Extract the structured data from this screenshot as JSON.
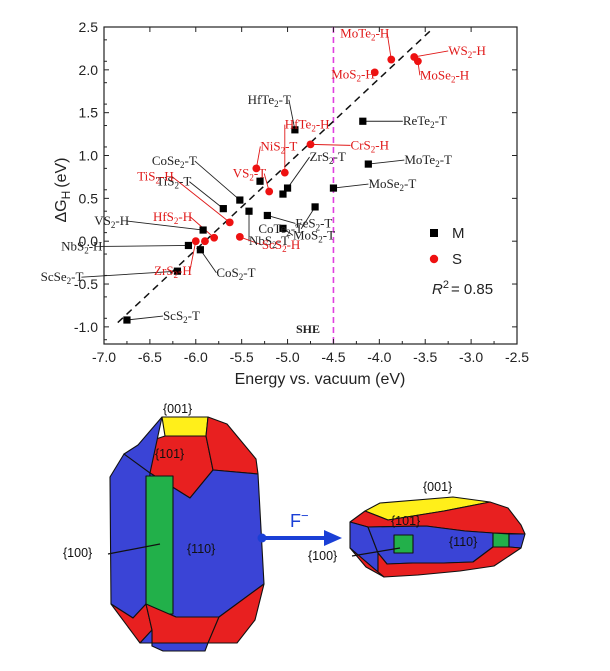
{
  "chart_data": {
    "type": "scatter",
    "xlabel": "Energy vs. vacuum (eV)",
    "ylabel": "ΔG",
    "ylabel_sub": "H",
    "ylabel_unit": "(eV)",
    "xlim": [
      -7.0,
      -2.5
    ],
    "ylim": [
      -1.2,
      2.5
    ],
    "xticks": [
      -7.0,
      -6.5,
      -6.0,
      -5.5,
      -5.0,
      -4.5,
      -4.0,
      -3.5,
      -3.0,
      -2.5
    ],
    "xtick_labels": [
      "-7.0",
      "-6.5",
      "-6.0",
      "-5.5",
      "-5.0",
      "-4.5",
      "-4.0",
      "-3.5",
      "-3.0",
      "-2.5"
    ],
    "yticks": [
      -1.0,
      -0.5,
      0.0,
      0.5,
      1.0,
      1.5,
      2.0,
      2.5
    ],
    "ytick_labels": [
      "-1.0",
      "-0.5",
      "0.0",
      "0.5",
      "1.0",
      "1.5",
      "2.0",
      "2.5"
    ],
    "she": {
      "x": -4.5,
      "label": "SHE",
      "color": "#e040e0"
    },
    "fit_line": {
      "x": [
        -6.85,
        -3.45
      ],
      "y": [
        -0.95,
        2.45
      ]
    },
    "r2_label": "R",
    "r2_sup": "2",
    "r2_value": "= 0.85",
    "legend": [
      {
        "name": "M",
        "marker": "square",
        "color": "#000000"
      },
      {
        "name": "S",
        "marker": "circle",
        "color": "#ee1111"
      }
    ],
    "series": [
      {
        "name": "M",
        "marker": "square",
        "color": "#000000",
        "points": [
          {
            "x": -6.75,
            "y": -0.92,
            "label": "ScS",
            "sub": "2",
            "suf": "-T",
            "lc": "#222",
            "dx": 36,
            "dy": 0,
            "ldx": 2,
            "ldy": 1
          },
          {
            "x": -6.2,
            "y": -0.35,
            "label": "ScSe",
            "sub": "2",
            "suf": "-T",
            "lc": "#222",
            "dx": -96,
            "dy": 10,
            "ldx": 0,
            "ldy": 1
          },
          {
            "x": -6.08,
            "y": -0.05,
            "label": "NbS",
            "sub": "2",
            "suf": "-H",
            "lc": "#222",
            "dx": -88,
            "dy": 5,
            "ldx": 0,
            "ldy": 1
          },
          {
            "x": -5.92,
            "y": 0.13,
            "label": "VS",
            "sub": "2",
            "suf": "-H",
            "lc": "#222",
            "dx": -76,
            "dy": -5,
            "ldx": 0,
            "ldy": 1
          },
          {
            "x": -5.95,
            "y": -0.1,
            "label": "CoS",
            "sub": "2",
            "suf": "-T",
            "lc": "#222",
            "dx": 16,
            "dy": 27,
            "ldx": 2,
            "ldy": 1
          },
          {
            "x": -5.7,
            "y": 0.38,
            "label": "TiS",
            "sub": "2",
            "suf": "-T",
            "lc": "#222",
            "dx": -34,
            "dy": -23,
            "ldx": 0,
            "ldy": 1
          },
          {
            "x": -5.52,
            "y": 0.48,
            "label": "CoSe",
            "sub": "2",
            "suf": "-T",
            "lc": "#222",
            "dx": -45,
            "dy": -35,
            "ldx": 0,
            "ldy": 1
          },
          {
            "x": -5.42,
            "y": 0.35,
            "label": "NbS",
            "sub": "2",
            "suf": "-T",
            "lc": "#222",
            "dx": 0,
            "dy": 34,
            "ldx": 2,
            "ldy": 1
          },
          {
            "x": -5.3,
            "y": 0.7,
            "label": "",
            "sub": "",
            "suf": "",
            "lc": "#222",
            "dx": 0,
            "dy": 0,
            "ldx": 0,
            "ldy": 0
          },
          {
            "x": -5.0,
            "y": 0.62,
            "label": "ZrS",
            "sub": "2",
            "suf": "-T",
            "lc": "#222",
            "dx": 22,
            "dy": -27,
            "ldx": 2,
            "ldy": 1
          },
          {
            "x": -5.05,
            "y": 0.55,
            "label": "",
            "sub": "",
            "suf": "",
            "lc": "#222",
            "dx": 0,
            "dy": 0,
            "ldx": 0,
            "ldy": 0
          },
          {
            "x": -5.22,
            "y": 0.3,
            "label": "FeS",
            "sub": "2",
            "suf": "-T",
            "lc": "#222",
            "dx": 28,
            "dy": 12,
            "ldx": 2,
            "ldy": 1
          },
          {
            "x": -5.05,
            "y": 0.15,
            "label": "MoS",
            "sub": "2",
            "suf": "-T",
            "lc": "#222",
            "dx": 10,
            "dy": 11,
            "ldx": 2,
            "ldy": 1
          },
          {
            "x": -4.92,
            "y": 1.3,
            "label": "HfTe",
            "sub": "2",
            "suf": "-T",
            "lc": "#222",
            "dx": -6,
            "dy": -26,
            "ldx": 2,
            "ldy": 1
          },
          {
            "x": -4.7,
            "y": 0.4,
            "label": "CoTe",
            "sub": "2",
            "suf": "-T",
            "lc": "#222",
            "dx": -14,
            "dy": 26,
            "ldx": 2,
            "ldy": 1
          },
          {
            "x": -4.5,
            "y": 0.62,
            "label": "MoSe",
            "sub": "2",
            "suf": "-T",
            "lc": "#222",
            "dx": 35,
            "dy": 0,
            "ldx": 2,
            "ldy": 1
          },
          {
            "x": -4.18,
            "y": 1.4,
            "label": "ReTe",
            "sub": "2",
            "suf": "-T",
            "lc": "#222",
            "dx": 40,
            "dy": 4,
            "ldx": 2,
            "ldy": 1
          },
          {
            "x": -4.12,
            "y": 0.9,
            "label": "MoTe",
            "sub": "2",
            "suf": "-T",
            "lc": "#222",
            "dx": 36,
            "dy": 0,
            "ldx": 2,
            "ldy": 1
          }
        ]
      },
      {
        "name": "S",
        "marker": "circle",
        "color": "#ee1111",
        "points": [
          {
            "x": -6.0,
            "y": 0.0,
            "label": "ZrS",
            "sub": "2",
            "suf": "-H",
            "lc": "#e01818",
            "dx": -6,
            "dy": 34,
            "ldx": 0,
            "ldy": 1
          },
          {
            "x": -5.9,
            "y": 0.0,
            "label": "",
            "sub": "",
            "suf": "",
            "lc": "#e01818",
            "dx": 0,
            "dy": 0,
            "ldx": 0,
            "ldy": 0
          },
          {
            "x": -5.8,
            "y": 0.04,
            "label": "HfS",
            "sub": "2",
            "suf": "-H",
            "lc": "#e01818",
            "dx": -24,
            "dy": -17,
            "ldx": 0,
            "ldy": 1
          },
          {
            "x": -5.63,
            "y": 0.22,
            "label": "TiS",
            "sub": "2",
            "suf": "-H",
            "lc": "#e01818",
            "dx": -58,
            "dy": -42,
            "ldx": 0,
            "ldy": 1
          },
          {
            "x": -5.52,
            "y": 0.05,
            "label": "ScS",
            "sub": "2",
            "suf": "-H",
            "lc": "#e01818",
            "dx": 22,
            "dy": 12,
            "ldx": 2,
            "ldy": 1
          },
          {
            "x": -5.34,
            "y": 0.85,
            "label": "NiS",
            "sub": "2",
            "suf": "-T",
            "lc": "#e01818",
            "dx": 4,
            "dy": -18,
            "ldx": 2,
            "ldy": 1
          },
          {
            "x": -5.2,
            "y": 0.58,
            "label": "VS",
            "sub": "2",
            "suf": "-T",
            "lc": "#e01818",
            "dx": -5,
            "dy": -14,
            "ldx": 2,
            "ldy": 1
          },
          {
            "x": -5.03,
            "y": 0.8,
            "label": "HfTe",
            "sub": "2",
            "suf": "-H",
            "lc": "#e01818",
            "dx": 0,
            "dy": -44,
            "ldx": 2,
            "ldy": 1
          },
          {
            "x": -4.75,
            "y": 1.13,
            "label": "CrS",
            "sub": "2",
            "suf": "-H",
            "lc": "#e01818",
            "dx": 40,
            "dy": 5,
            "ldx": 2,
            "ldy": 1
          },
          {
            "x": -4.05,
            "y": 1.97,
            "label": "MoS",
            "sub": "2",
            "suf": "-H",
            "lc": "#e01818",
            "dx": -2,
            "dy": 6,
            "ldx": 0,
            "ldy": 1
          },
          {
            "x": -3.87,
            "y": 2.12,
            "label": "MoTe",
            "sub": "2",
            "suf": "-H",
            "lc": "#e01818",
            "dx": -4,
            "dy": -22,
            "ldx": 0,
            "ldy": 1
          },
          {
            "x": -3.62,
            "y": 2.15,
            "label": "WS",
            "sub": "2",
            "suf": "-H",
            "lc": "#e01818",
            "dx": 34,
            "dy": -2,
            "ldx": 2,
            "ldy": 1
          },
          {
            "x": -3.58,
            "y": 2.1,
            "label": "MoSe",
            "sub": "2",
            "suf": "-H",
            "lc": "#e01818",
            "dx": 2,
            "dy": 18,
            "ldx": 2,
            "ldy": 1
          }
        ]
      }
    ]
  },
  "diagram": {
    "arrow_label": "F",
    "arrow_label_sup": "−",
    "left_crystal": {
      "label_001": "{001}",
      "label_101": "{101}",
      "label_100": "{100}",
      "label_110": "{110}"
    },
    "right_crystal": {
      "label_001": "{001}",
      "label_101": "{101}",
      "label_100": "{100}",
      "label_110": "{110}"
    },
    "colors": {
      "blue": "#3a44d6",
      "red": "#e82020",
      "green": "#22b04a",
      "yellow": "#ffef1a",
      "arrow": "#1a3fd6"
    }
  }
}
